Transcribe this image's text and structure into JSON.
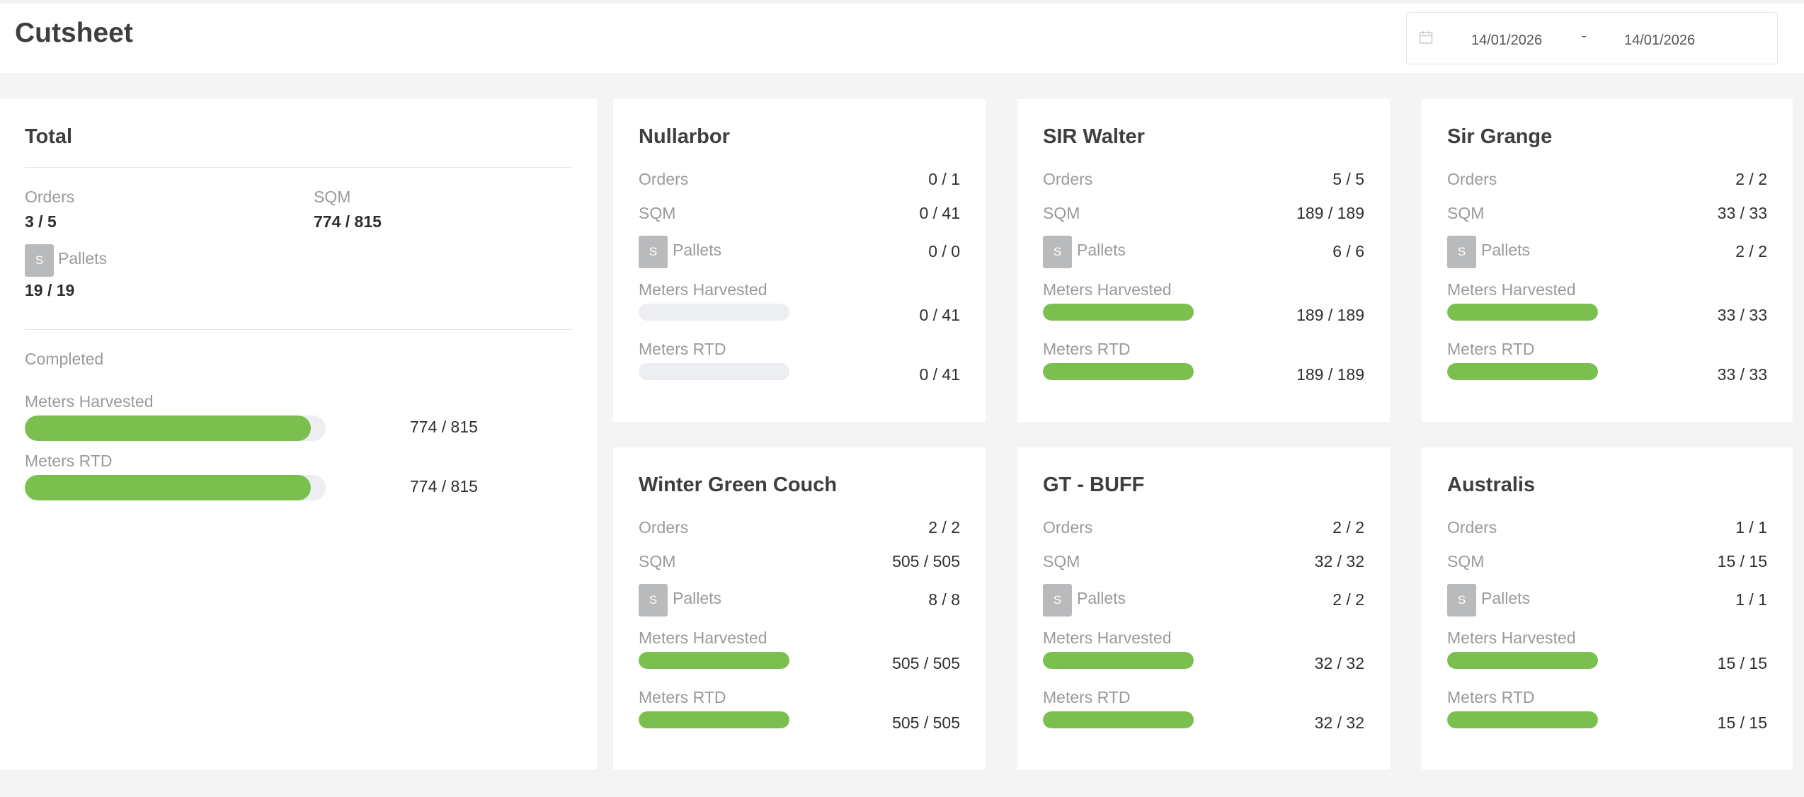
{
  "header": {
    "title": "Cutsheet",
    "date_from": "14/01/2026",
    "date_separator": "-",
    "date_to": "14/01/2026",
    "calendar_icon": "calendar-icon"
  },
  "total": {
    "title": "Total",
    "orders_label": "Orders",
    "orders_value": "3 / 5",
    "sqm_label": "SQM",
    "sqm_value": "774 / 815",
    "pallet_badge": "S",
    "pallets_label": "Pallets",
    "pallets_value": "19 / 19",
    "completed_label": "Completed",
    "meters_harvested_label": "Meters Harvested",
    "meters_harvested_value": "774 / 815",
    "meters_harvested_progress": 0.9497,
    "meters_rtd_label": "Meters RTD",
    "meters_rtd_value": "774 / 815",
    "meters_rtd_progress": 0.9497
  },
  "labels": {
    "orders": "Orders",
    "sqm": "SQM",
    "pallets": "Pallets",
    "meters_harvested": "Meters Harvested",
    "meters_rtd": "Meters RTD",
    "badge": "S"
  },
  "colors": {
    "progress_fill": "#7bc04f",
    "progress_track": "#eceef1",
    "badge": "#b9babc"
  },
  "cards": [
    {
      "title": "Nullarbor",
      "orders": "0 / 1",
      "sqm": "0 / 41",
      "pallets": "0 / 0",
      "meters_harvested": "0 / 41",
      "meters_harvested_progress": 0,
      "meters_rtd": "0 / 41",
      "meters_rtd_progress": 0
    },
    {
      "title": "SIR Walter",
      "orders": "5 / 5",
      "sqm": "189 / 189",
      "pallets": "6 / 6",
      "meters_harvested": "189 / 189",
      "meters_harvested_progress": 1,
      "meters_rtd": "189 / 189",
      "meters_rtd_progress": 1
    },
    {
      "title": "Sir Grange",
      "orders": "2 / 2",
      "sqm": "33 / 33",
      "pallets": "2 / 2",
      "meters_harvested": "33 / 33",
      "meters_harvested_progress": 1,
      "meters_rtd": "33 / 33",
      "meters_rtd_progress": 1
    },
    {
      "title": "Winter Green Couch",
      "orders": "2 / 2",
      "sqm": "505 / 505",
      "pallets": "8 / 8",
      "meters_harvested": "505 / 505",
      "meters_harvested_progress": 1,
      "meters_rtd": "505 / 505",
      "meters_rtd_progress": 1
    },
    {
      "title": "GT - BUFF",
      "orders": "2 / 2",
      "sqm": "32 / 32",
      "pallets": "2 / 2",
      "meters_harvested": "32 / 32",
      "meters_harvested_progress": 1,
      "meters_rtd": "32 / 32",
      "meters_rtd_progress": 1
    },
    {
      "title": "Australis",
      "orders": "1 / 1",
      "sqm": "15 / 15",
      "pallets": "1 / 1",
      "meters_harvested": "15 / 15",
      "meters_harvested_progress": 1,
      "meters_rtd": "15 / 15",
      "meters_rtd_progress": 1
    }
  ]
}
